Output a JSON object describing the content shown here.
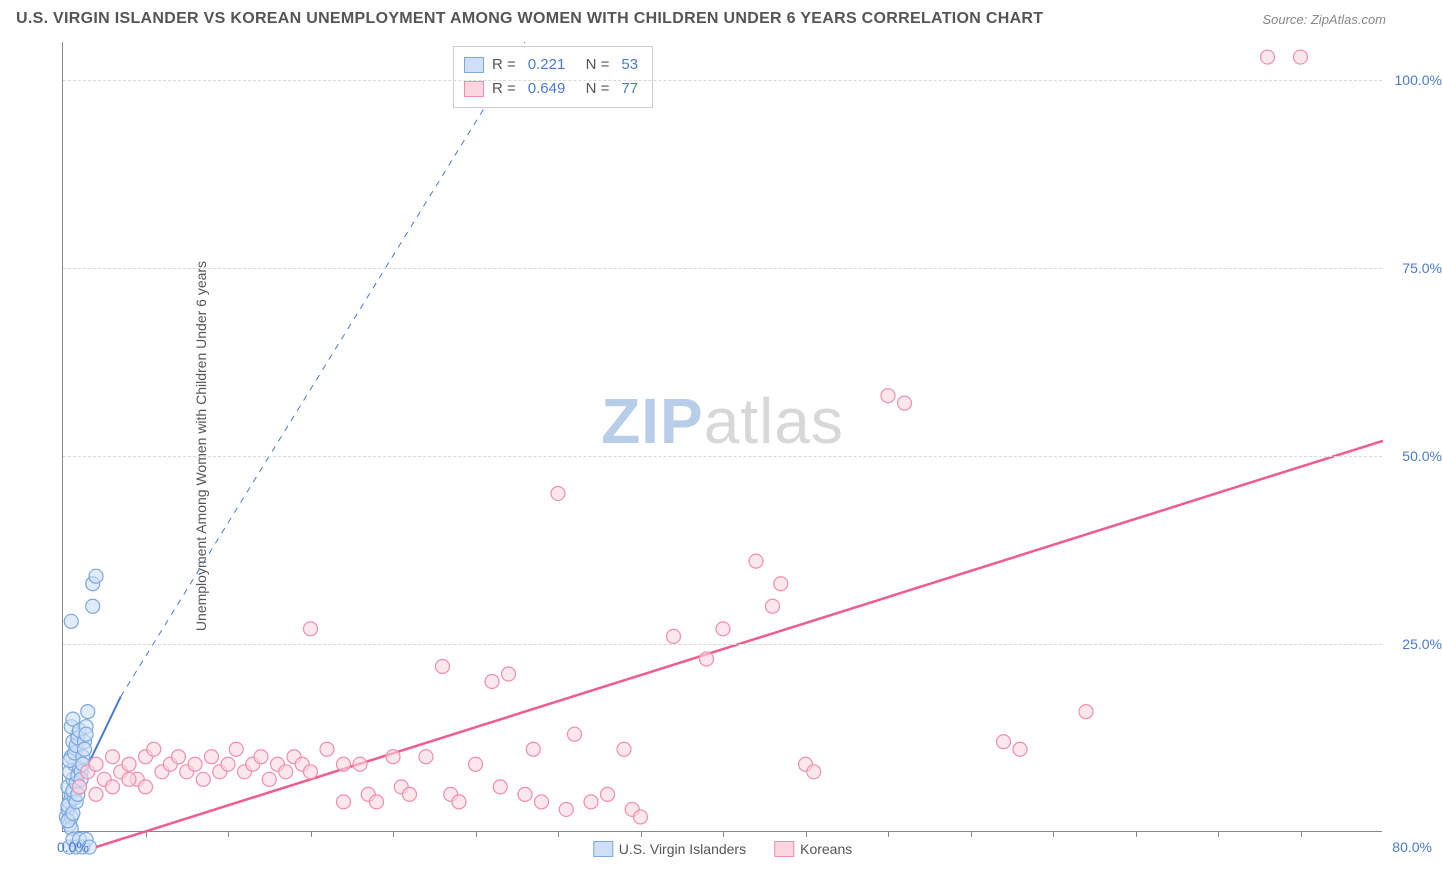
{
  "title": "U.S. VIRGIN ISLANDER VS KOREAN UNEMPLOYMENT AMONG WOMEN WITH CHILDREN UNDER 6 YEARS CORRELATION CHART",
  "source": "Source: ZipAtlas.com",
  "y_axis_title": "Unemployment Among Women with Children Under 6 years",
  "watermark_a": "ZIP",
  "watermark_b": "atlas",
  "chart": {
    "type": "scatter",
    "xlim": [
      0,
      80
    ],
    "ylim": [
      0,
      105
    ],
    "x_origin_label": "0.0%",
    "x_max_label": "80.0%",
    "y_ticks": [
      25,
      50,
      75,
      100
    ],
    "y_tick_labels": [
      "25.0%",
      "50.0%",
      "75.0%",
      "100.0%"
    ],
    "x_minor_ticks": [
      5,
      10,
      15,
      20,
      25,
      30,
      35,
      40,
      45,
      50,
      55,
      60,
      65,
      70,
      75
    ],
    "background_color": "#ffffff",
    "grid_color": "#d8d8d8",
    "axis_color": "#888888",
    "label_color": "#4a7bd0",
    "marker_radius": 7,
    "marker_stroke_width": 1.2,
    "series": [
      {
        "name": "U.S. Virgin Islanders",
        "color_fill": "#cfe0f5",
        "color_stroke": "#7aa8e0",
        "R": "0.221",
        "N": "53",
        "trend": {
          "x1": 0,
          "y1": 2,
          "x2": 3.5,
          "y2": 18,
          "dash_to_x": 28,
          "dash_to_y": 105,
          "color": "#4a7bd0",
          "width": 2
        },
        "points": [
          [
            0.2,
            2
          ],
          [
            0.3,
            3
          ],
          [
            0.4,
            4
          ],
          [
            0.5,
            5
          ],
          [
            0.3,
            6
          ],
          [
            0.6,
            7
          ],
          [
            0.4,
            8
          ],
          [
            0.7,
            9
          ],
          [
            0.5,
            10
          ],
          [
            0.8,
            11
          ],
          [
            0.6,
            12
          ],
          [
            0.9,
            13
          ],
          [
            0.4,
            1
          ],
          [
            0.5,
            2
          ],
          [
            0.3,
            3.5
          ],
          [
            0.7,
            4.5
          ],
          [
            0.6,
            5.5
          ],
          [
            0.8,
            6.5
          ],
          [
            0.9,
            7.5
          ],
          [
            1.0,
            8.5
          ],
          [
            0.5,
            14
          ],
          [
            0.6,
            15
          ],
          [
            0.4,
            9.5
          ],
          [
            0.7,
            10.5
          ],
          [
            0.8,
            11.5
          ],
          [
            0.9,
            12.5
          ],
          [
            1.0,
            13.5
          ],
          [
            0.5,
            0.5
          ],
          [
            0.3,
            1.5
          ],
          [
            0.6,
            2.5
          ],
          [
            1.2,
            10
          ],
          [
            1.3,
            12
          ],
          [
            1.1,
            8
          ],
          [
            1.4,
            14
          ],
          [
            1.5,
            16
          ],
          [
            1.0,
            6
          ],
          [
            0.8,
            4
          ],
          [
            0.9,
            5
          ],
          [
            1.1,
            7
          ],
          [
            1.2,
            9
          ],
          [
            1.3,
            11
          ],
          [
            1.4,
            13
          ],
          [
            0.5,
            28
          ],
          [
            1.8,
            30
          ],
          [
            1.8,
            33
          ],
          [
            2.0,
            34
          ],
          [
            0.4,
            -2
          ],
          [
            0.6,
            -1
          ],
          [
            0.8,
            -2
          ],
          [
            1.0,
            -1
          ],
          [
            1.2,
            -2
          ],
          [
            1.4,
            -1
          ],
          [
            1.6,
            -2
          ]
        ]
      },
      {
        "name": "Koreans",
        "color_fill": "#fad7e0",
        "color_stroke": "#ef8fad",
        "R": "0.649",
        "N": "77",
        "trend": {
          "x1": 2,
          "y1": -2,
          "x2": 80,
          "y2": 52,
          "color": "#ef5d8a",
          "width": 2.5
        },
        "points": [
          [
            1.5,
            8
          ],
          [
            2,
            9
          ],
          [
            2.5,
            7
          ],
          [
            3,
            10
          ],
          [
            3.5,
            8
          ],
          [
            4,
            9
          ],
          [
            4.5,
            7
          ],
          [
            5,
            10
          ],
          [
            5.5,
            11
          ],
          [
            6,
            8
          ],
          [
            6.5,
            9
          ],
          [
            7,
            10
          ],
          [
            7.5,
            8
          ],
          [
            8,
            9
          ],
          [
            8.5,
            7
          ],
          [
            9,
            10
          ],
          [
            9.5,
            8
          ],
          [
            10,
            9
          ],
          [
            10.5,
            11
          ],
          [
            11,
            8
          ],
          [
            11.5,
            9
          ],
          [
            12,
            10
          ],
          [
            12.5,
            7
          ],
          [
            13,
            9
          ],
          [
            13.5,
            8
          ],
          [
            14,
            10
          ],
          [
            14.5,
            9
          ],
          [
            15,
            8
          ],
          [
            16,
            11
          ],
          [
            17,
            9
          ],
          [
            15,
            27
          ],
          [
            17,
            4
          ],
          [
            18,
            9
          ],
          [
            18.5,
            5
          ],
          [
            19,
            4
          ],
          [
            20,
            10
          ],
          [
            20.5,
            6
          ],
          [
            21,
            5
          ],
          [
            22,
            10
          ],
          [
            23,
            22
          ],
          [
            23.5,
            5
          ],
          [
            24,
            4
          ],
          [
            25,
            9
          ],
          [
            26,
            20
          ],
          [
            26.5,
            6
          ],
          [
            27,
            21
          ],
          [
            28,
            5
          ],
          [
            28.5,
            11
          ],
          [
            29,
            4
          ],
          [
            30,
            45
          ],
          [
            30.5,
            3
          ],
          [
            31,
            13
          ],
          [
            32,
            4
          ],
          [
            33,
            5
          ],
          [
            34,
            11
          ],
          [
            34.5,
            3
          ],
          [
            35,
            2
          ],
          [
            37,
            26
          ],
          [
            39,
            23
          ],
          [
            40,
            27
          ],
          [
            42,
            36
          ],
          [
            43,
            30
          ],
          [
            43.5,
            33
          ],
          [
            45,
            9
          ],
          [
            45.5,
            8
          ],
          [
            50,
            58
          ],
          [
            51,
            57
          ],
          [
            57,
            12
          ],
          [
            58,
            11
          ],
          [
            62,
            16
          ],
          [
            73,
            103
          ],
          [
            75,
            103
          ],
          [
            1,
            6
          ],
          [
            2,
            5
          ],
          [
            3,
            6
          ],
          [
            4,
            7
          ],
          [
            5,
            6
          ]
        ]
      }
    ]
  },
  "stats_legend": {
    "rows": [
      {
        "swatch_fill": "#cfe0f5",
        "swatch_stroke": "#7aa8e0",
        "r_label": "R =",
        "r_value": "0.221",
        "n_label": "N =",
        "n_value": "53"
      },
      {
        "swatch_fill": "#fad7e0",
        "swatch_stroke": "#ef8fad",
        "r_label": "R =",
        "r_value": "0.649",
        "n_label": "N =",
        "n_value": "77"
      }
    ]
  },
  "bottom_legend": [
    {
      "swatch_fill": "#cfe0f5",
      "swatch_stroke": "#7aa8e0",
      "label": "U.S. Virgin Islanders"
    },
    {
      "swatch_fill": "#fad7e0",
      "swatch_stroke": "#ef8fad",
      "label": "Koreans"
    }
  ]
}
